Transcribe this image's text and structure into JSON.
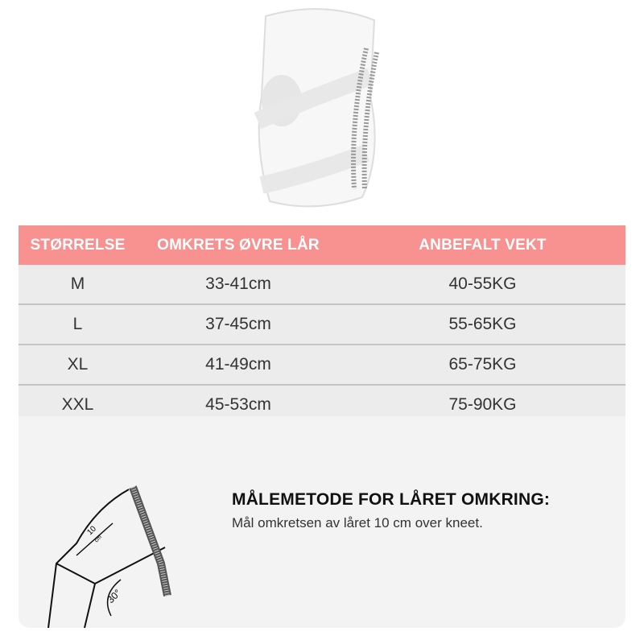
{
  "table": {
    "headers": [
      "STØRRELSE",
      "OMKRETS ØVRE LÅR",
      "ANBEFALT VEKT"
    ],
    "rows": [
      {
        "size": "M",
        "circumference": "33-41cm",
        "weight": "40-55KG"
      },
      {
        "size": "L",
        "circumference": "37-45cm",
        "weight": "55-65KG"
      },
      {
        "size": "XL",
        "circumference": "41-49cm",
        "weight": "65-75KG"
      },
      {
        "size": "XXL",
        "circumference": "45-53cm",
        "weight": "75-90KG"
      }
    ],
    "header_color": "#f79290",
    "row_color": "#ececec"
  },
  "howto": {
    "title": "MÅLEMETODE FOR LÅRET OMKRING:",
    "text": "Mål omkretsen av låret 10 cm over kneet."
  },
  "illustration": {
    "distance_label": "10",
    "distance_unit": "cm",
    "angle_label": "30°"
  }
}
